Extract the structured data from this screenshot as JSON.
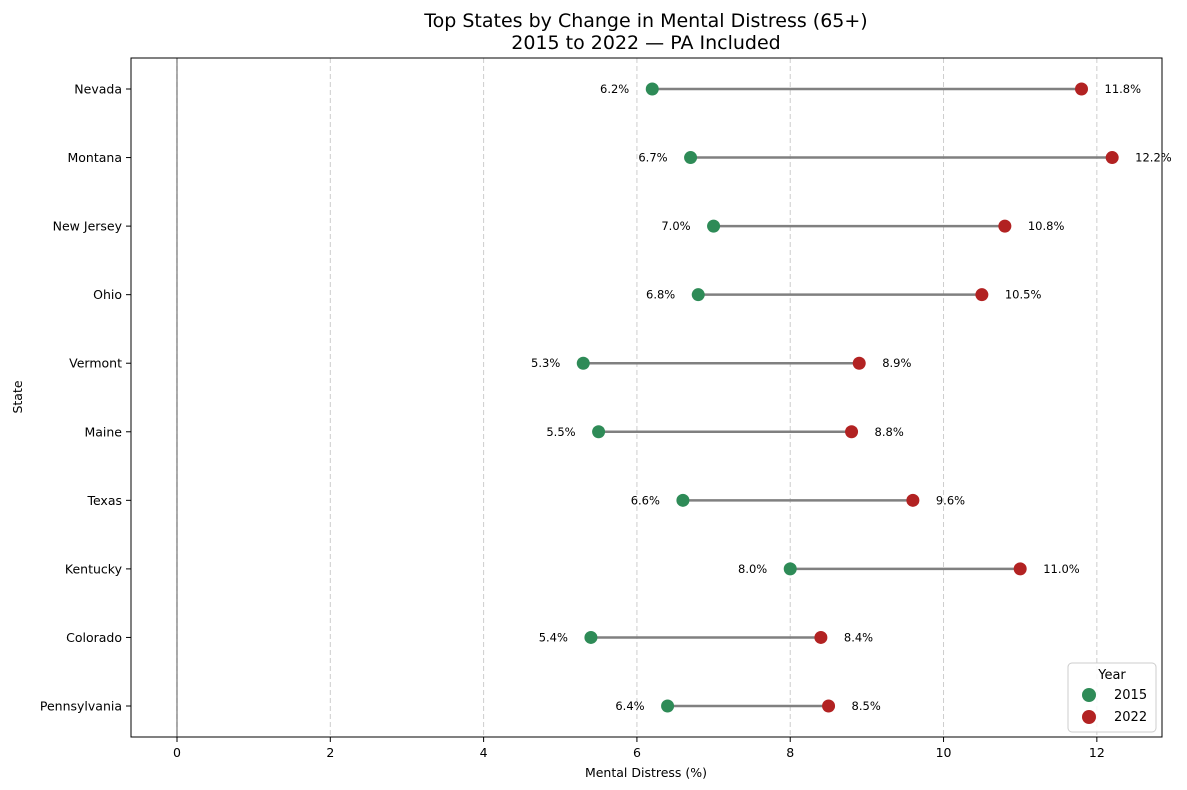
{
  "chart_data": {
    "type": "scatter",
    "title_line1": "Top States by Change in Mental Distress (65+)",
    "title_line2": "2015 to 2022 — PA Included",
    "xlabel": "Mental Distress (%)",
    "ylabel": "State",
    "xlim": [
      -0.6,
      12.85
    ],
    "xticks": [
      0,
      2,
      4,
      6,
      8,
      10,
      12
    ],
    "grid": "x, dashed",
    "states": [
      "Nevada",
      "Montana",
      "New Jersey",
      "Ohio",
      "Vermont",
      "Maine",
      "Texas",
      "Kentucky",
      "Colorado",
      "Pennsylvania"
    ],
    "series": [
      {
        "name": "2015",
        "color": "#2e8b57",
        "values": [
          6.2,
          6.7,
          7.0,
          6.8,
          5.3,
          5.5,
          6.6,
          8.0,
          5.4,
          6.4
        ],
        "labels": [
          "6.2%",
          "6.7%",
          "7.0%",
          "6.8%",
          "5.3%",
          "5.5%",
          "6.6%",
          "8.0%",
          "5.4%",
          "6.4%"
        ]
      },
      {
        "name": "2022",
        "color": "#b22222",
        "values": [
          11.8,
          12.2,
          10.8,
          10.5,
          8.9,
          8.8,
          9.6,
          11.0,
          8.4,
          8.5
        ],
        "labels": [
          "11.8%",
          "12.2%",
          "10.8%",
          "10.5%",
          "8.9%",
          "8.8%",
          "9.6%",
          "11.0%",
          "8.4%",
          "8.5%"
        ]
      }
    ],
    "connector_color": "#808080",
    "legend": {
      "title": "Year",
      "position": "bottom-right"
    }
  }
}
